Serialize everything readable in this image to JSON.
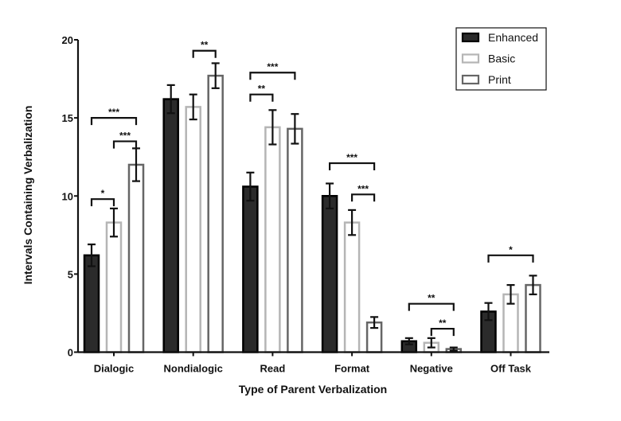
{
  "chart_data": {
    "type": "bar",
    "title": "",
    "xlabel": "Type of Parent Verbalization",
    "ylabel": "Intervals Containing Verbalization",
    "ylim": [
      0,
      20
    ],
    "yticks": [
      "0",
      "5",
      "10",
      "15",
      "20"
    ],
    "grid": false,
    "legend_position": "top-right",
    "categories": [
      "Dialogic",
      "Nondialogic",
      "Read",
      "Format",
      "Negative",
      "Off Task"
    ],
    "series": [
      {
        "name": "Enhanced",
        "fill": "#2b2b2b",
        "stroke": "#000000",
        "values": [
          6.2,
          16.2,
          10.6,
          10.0,
          0.7,
          2.6
        ],
        "errors": [
          0.7,
          0.9,
          0.9,
          0.8,
          0.2,
          0.55
        ]
      },
      {
        "name": "Basic",
        "fill": "#ffffff",
        "stroke": "#b5b5b5",
        "values": [
          8.3,
          15.7,
          14.4,
          8.3,
          0.6,
          3.7
        ],
        "errors": [
          0.9,
          0.8,
          1.1,
          0.8,
          0.3,
          0.6
        ]
      },
      {
        "name": "Print",
        "fill": "#ffffff",
        "stroke": "#666666",
        "values": [
          12.0,
          17.7,
          14.3,
          1.9,
          0.2,
          4.3
        ],
        "errors": [
          1.05,
          0.8,
          0.95,
          0.35,
          0.1,
          0.6
        ]
      }
    ],
    "significance": [
      {
        "category": 0,
        "from": 0,
        "to": 1,
        "label": "*",
        "y": 9.8
      },
      {
        "category": 0,
        "from": 1,
        "to": 2,
        "label": "***",
        "y": 13.5
      },
      {
        "category": 0,
        "from": 0,
        "to": 2,
        "label": "***",
        "y": 15.0
      },
      {
        "category": 1,
        "from": 1,
        "to": 2,
        "label": "**",
        "y": 19.3
      },
      {
        "category": 2,
        "from": 0,
        "to": 1,
        "label": "**",
        "y": 16.5
      },
      {
        "category": 2,
        "from": 0,
        "to": 2,
        "label": "***",
        "y": 17.9
      },
      {
        "category": 3,
        "from": 0,
        "to": 2,
        "label": "***",
        "y": 12.1
      },
      {
        "category": 3,
        "from": 1,
        "to": 2,
        "label": "***",
        "y": 10.1
      },
      {
        "category": 4,
        "from": 0,
        "to": 2,
        "label": "**",
        "y": 3.1
      },
      {
        "category": 4,
        "from": 1,
        "to": 2,
        "label": "**",
        "y": 1.5
      },
      {
        "category": 5,
        "from": 0,
        "to": 2,
        "label": "*",
        "y": 6.2
      }
    ]
  }
}
